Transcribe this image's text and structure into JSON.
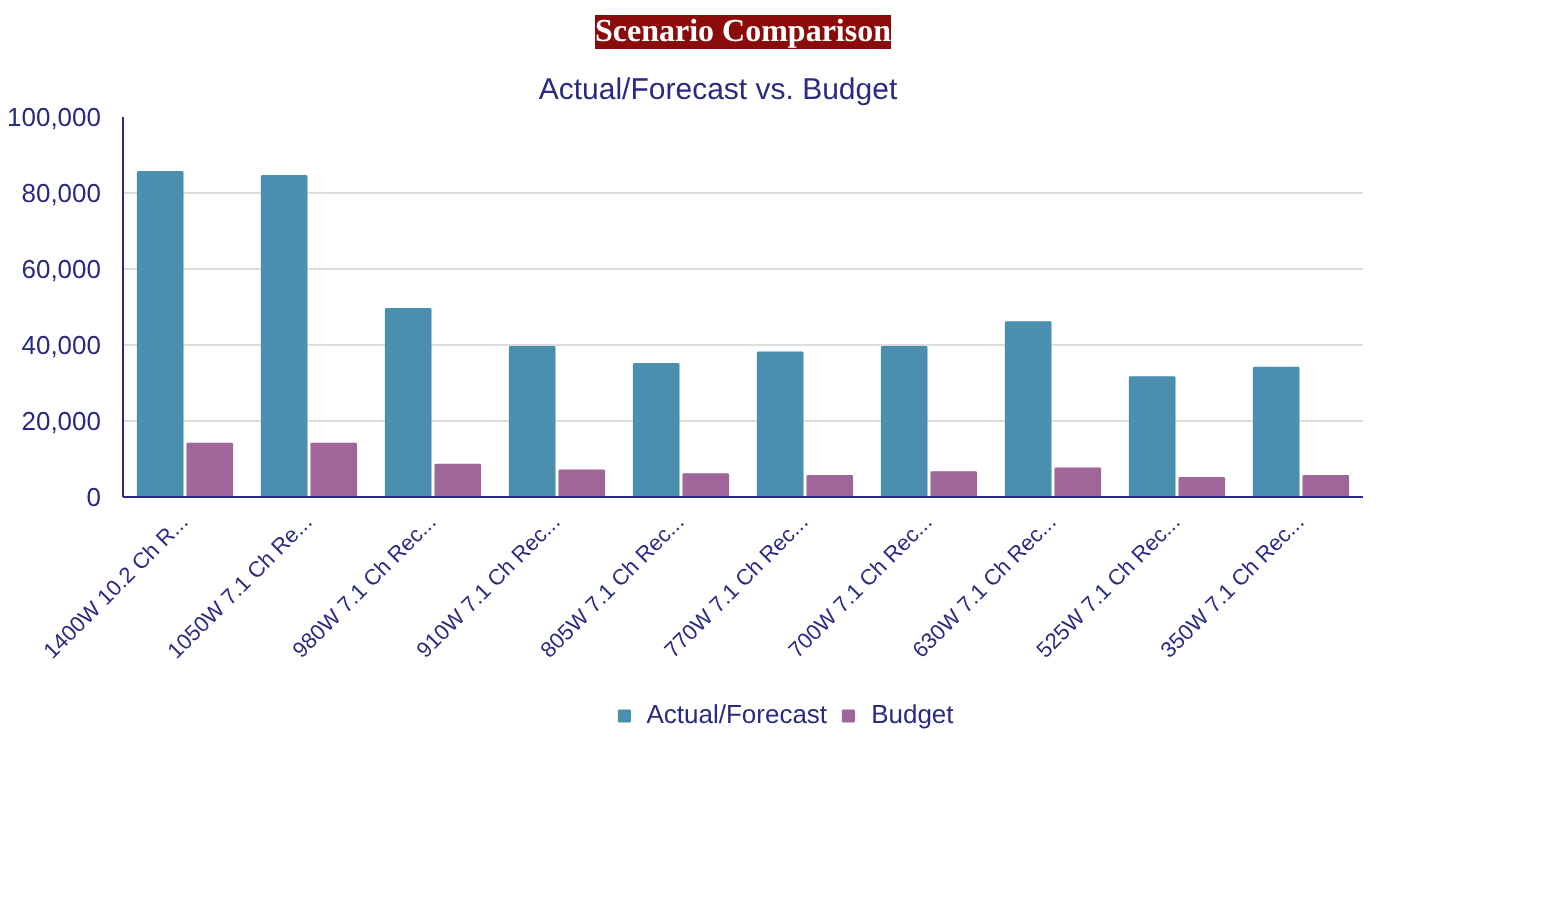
{
  "chart_data": {
    "type": "bar",
    "title": "Scenario Comparison",
    "subtitle": "Actual/Forecast    vs.    Budget",
    "categories": [
      "1400W 10.2 Ch R...",
      "1050W 7.1 Ch Re...",
      "980W 7.1 Ch Rec...",
      "910W 7.1 Ch Rec...",
      "805W 7.1 Ch Rec...",
      "770W 7.1 Ch Rec...",
      "700W 7.1 Ch Rec...",
      "630W 7.1 Ch Rec...",
      "525W 7.1 Ch Rec...",
      "350W 7.1 Ch Rec..."
    ],
    "series": [
      {
        "name": "Actual/Forecast",
        "color": "#4a8fae",
        "values": [
          85500,
          84500,
          49500,
          39500,
          35000,
          38000,
          39500,
          46000,
          31500,
          34000
        ]
      },
      {
        "name": "Budget",
        "color": "#a0669a",
        "values": [
          14000,
          14000,
          8500,
          7000,
          6000,
          5500,
          6500,
          7500,
          5000,
          5500
        ]
      }
    ],
    "ylim": [
      0,
      100000
    ],
    "yticks": [
      {
        "value": 0,
        "label": "0"
      },
      {
        "value": 20000,
        "label": "20,000"
      },
      {
        "value": 40000,
        "label": "40,000"
      },
      {
        "value": 60000,
        "label": "60,000"
      },
      {
        "value": 80000,
        "label": "80,000"
      },
      {
        "value": 100000,
        "label": "100,000"
      }
    ],
    "grid": "y",
    "legend": "bottom"
  }
}
